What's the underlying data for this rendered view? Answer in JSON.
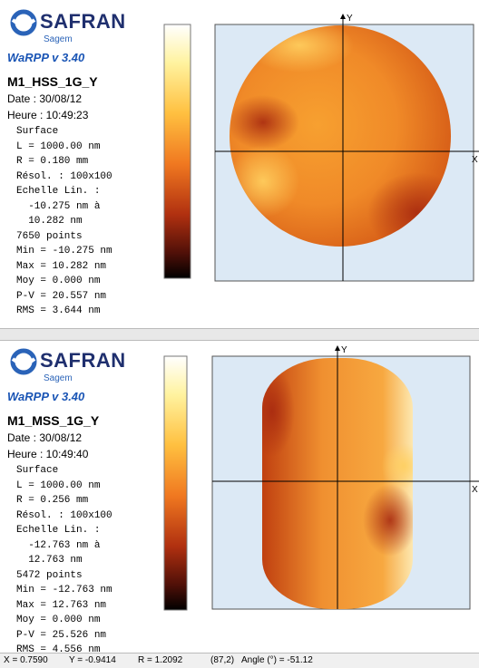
{
  "panels": [
    {
      "logo": "SAFRAN",
      "logo_sub": "Sagem",
      "version": "WaRPP v 3.40",
      "name": "M1_HSS_1G_Y",
      "date": "Date : 30/08/12",
      "time": "Heure : 10:49:23",
      "info": [
        "Surface",
        "L = 1000.00 nm",
        "R = 0.180 mm",
        "Résol. : 100x100",
        "Echelle Lin. :",
        "  -10.275 nm à",
        "  10.282 nm",
        "7650 points",
        "Min = -10.275 nm",
        "Max = 10.282 nm",
        "Moy = 0.000 nm",
        "P-V = 20.557 nm",
        "RMS = 3.644 nm"
      ],
      "axis_y": "Y",
      "axis_x": "X"
    },
    {
      "logo": "SAFRAN",
      "logo_sub": "Sagem",
      "version": "WaRPP v 3.40",
      "name": "M1_MSS_1G_Y",
      "date": "Date : 30/08/12",
      "time": "Heure : 10:49:40",
      "info": [
        "Surface",
        "L = 1000.00 nm",
        "R = 0.256 mm",
        "Résol. : 100x100",
        "Echelle Lin. :",
        "  -12.763 nm à",
        "  12.763 nm",
        "5472 points",
        "Min = -12.763 nm",
        "Max = 12.763 nm",
        "Moy = 0.000 nm",
        "P-V = 25.526 nm",
        "RMS = 4.556 nm"
      ],
      "axis_y": "Y",
      "axis_x": "X"
    }
  ],
  "status_bar": [
    "X = 0.7590",
    "Y = -0.9414",
    "R = 1.2092",
    "(87,2)",
    "Angle (°) = -51.12"
  ]
}
